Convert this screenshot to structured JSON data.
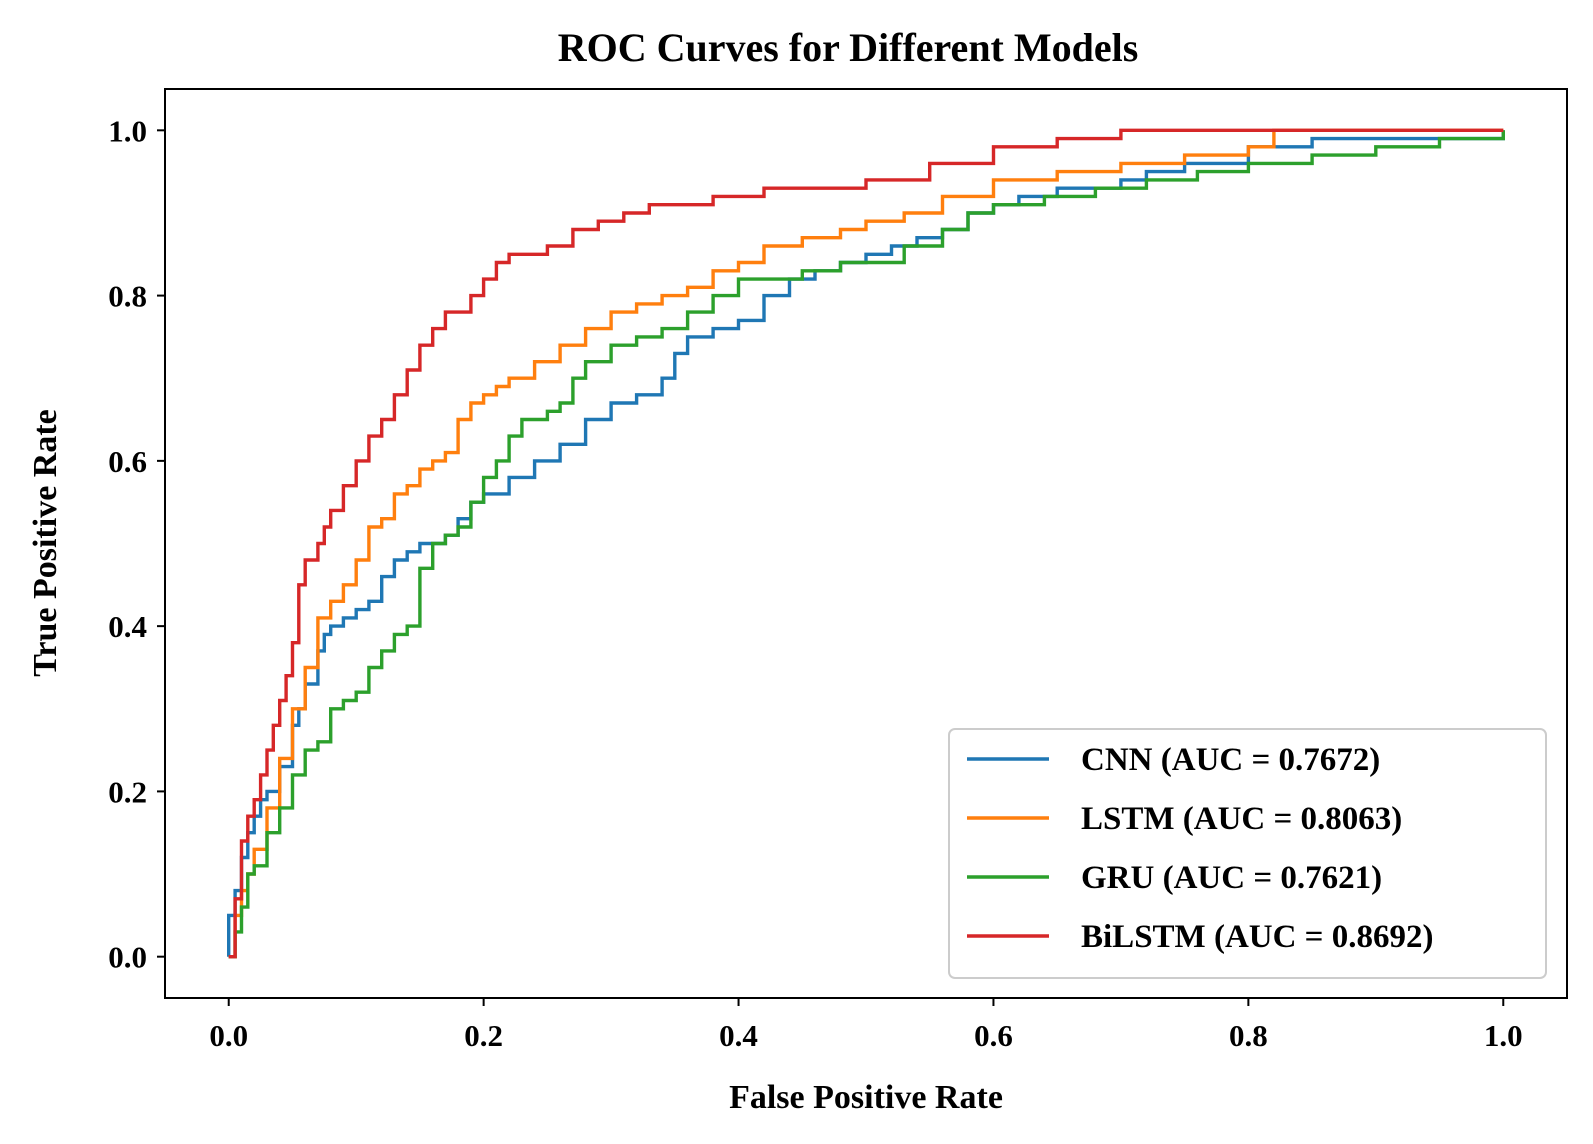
{
  "chart_data": {
    "type": "line",
    "title": "ROC Curves for Different Models",
    "xlabel": "False Positive Rate",
    "ylabel": "True Positive Rate",
    "xlim": [
      -0.05,
      1.05
    ],
    "ylim": [
      -0.05,
      1.05
    ],
    "xticks": [
      0.0,
      0.2,
      0.4,
      0.6,
      0.8,
      1.0
    ],
    "xtick_labels": [
      "0.0",
      "0.2",
      "0.4",
      "0.6",
      "0.8",
      "1.0"
    ],
    "yticks": [
      0.0,
      0.2,
      0.4,
      0.6,
      0.8,
      1.0
    ],
    "ytick_labels": [
      "0.0",
      "0.2",
      "0.4",
      "0.6",
      "0.8",
      "1.0"
    ],
    "grid": false,
    "legend_position": "lower-right",
    "series": [
      {
        "name": "CNN (AUC = 0.7672)",
        "color": "#1f77b4",
        "x": [
          0.0,
          0.0,
          0.005,
          0.01,
          0.015,
          0.02,
          0.025,
          0.03,
          0.04,
          0.05,
          0.055,
          0.06,
          0.07,
          0.075,
          0.08,
          0.09,
          0.1,
          0.11,
          0.12,
          0.13,
          0.14,
          0.15,
          0.16,
          0.17,
          0.18,
          0.19,
          0.2,
          0.22,
          0.24,
          0.26,
          0.28,
          0.3,
          0.32,
          0.34,
          0.35,
          0.36,
          0.38,
          0.4,
          0.42,
          0.44,
          0.46,
          0.48,
          0.5,
          0.52,
          0.54,
          0.56,
          0.58,
          0.6,
          0.62,
          0.65,
          0.68,
          0.7,
          0.72,
          0.75,
          0.8,
          0.85,
          0.9,
          1.0
        ],
        "y": [
          0.0,
          0.05,
          0.08,
          0.12,
          0.15,
          0.17,
          0.19,
          0.2,
          0.23,
          0.28,
          0.3,
          0.33,
          0.37,
          0.39,
          0.4,
          0.41,
          0.42,
          0.43,
          0.46,
          0.48,
          0.49,
          0.5,
          0.5,
          0.51,
          0.53,
          0.55,
          0.56,
          0.58,
          0.6,
          0.62,
          0.65,
          0.67,
          0.68,
          0.7,
          0.73,
          0.75,
          0.76,
          0.77,
          0.8,
          0.82,
          0.83,
          0.84,
          0.85,
          0.86,
          0.87,
          0.88,
          0.9,
          0.91,
          0.92,
          0.93,
          0.93,
          0.94,
          0.95,
          0.96,
          0.98,
          0.99,
          0.99,
          1.0
        ]
      },
      {
        "name": "LSTM (AUC = 0.8063)",
        "color": "#ff7f0e",
        "x": [
          0.0,
          0.005,
          0.01,
          0.015,
          0.02,
          0.03,
          0.04,
          0.05,
          0.06,
          0.07,
          0.08,
          0.09,
          0.1,
          0.11,
          0.12,
          0.13,
          0.14,
          0.15,
          0.16,
          0.17,
          0.18,
          0.19,
          0.2,
          0.21,
          0.22,
          0.24,
          0.26,
          0.28,
          0.3,
          0.32,
          0.34,
          0.36,
          0.38,
          0.4,
          0.42,
          0.45,
          0.48,
          0.5,
          0.53,
          0.56,
          0.6,
          0.65,
          0.7,
          0.75,
          0.8,
          0.82,
          1.0
        ],
        "y": [
          0.0,
          0.05,
          0.08,
          0.1,
          0.13,
          0.18,
          0.24,
          0.3,
          0.35,
          0.41,
          0.43,
          0.45,
          0.48,
          0.52,
          0.53,
          0.56,
          0.57,
          0.59,
          0.6,
          0.61,
          0.65,
          0.67,
          0.68,
          0.69,
          0.7,
          0.72,
          0.74,
          0.76,
          0.78,
          0.79,
          0.8,
          0.81,
          0.83,
          0.84,
          0.86,
          0.87,
          0.88,
          0.89,
          0.9,
          0.92,
          0.94,
          0.95,
          0.96,
          0.97,
          0.98,
          1.0,
          1.0
        ]
      },
      {
        "name": "GRU (AUC = 0.7621)",
        "color": "#2ca02c",
        "x": [
          0.0,
          0.005,
          0.01,
          0.015,
          0.02,
          0.03,
          0.04,
          0.05,
          0.06,
          0.07,
          0.08,
          0.09,
          0.1,
          0.11,
          0.12,
          0.13,
          0.14,
          0.15,
          0.16,
          0.17,
          0.18,
          0.19,
          0.2,
          0.21,
          0.22,
          0.23,
          0.25,
          0.26,
          0.27,
          0.28,
          0.3,
          0.32,
          0.34,
          0.36,
          0.38,
          0.4,
          0.42,
          0.45,
          0.48,
          0.5,
          0.53,
          0.56,
          0.58,
          0.6,
          0.64,
          0.68,
          0.72,
          0.76,
          0.8,
          0.85,
          0.9,
          0.95,
          1.0
        ],
        "y": [
          0.0,
          0.03,
          0.06,
          0.1,
          0.11,
          0.15,
          0.18,
          0.22,
          0.25,
          0.26,
          0.3,
          0.31,
          0.32,
          0.35,
          0.37,
          0.39,
          0.4,
          0.47,
          0.5,
          0.51,
          0.52,
          0.55,
          0.58,
          0.6,
          0.63,
          0.65,
          0.66,
          0.67,
          0.7,
          0.72,
          0.74,
          0.75,
          0.76,
          0.78,
          0.8,
          0.82,
          0.82,
          0.83,
          0.84,
          0.84,
          0.86,
          0.88,
          0.9,
          0.91,
          0.92,
          0.93,
          0.94,
          0.95,
          0.96,
          0.97,
          0.98,
          0.99,
          1.0
        ]
      },
      {
        "name": "BiLSTM (AUC = 0.8692)",
        "color": "#d62728",
        "x": [
          0.0,
          0.005,
          0.01,
          0.015,
          0.02,
          0.025,
          0.03,
          0.035,
          0.04,
          0.045,
          0.05,
          0.055,
          0.06,
          0.07,
          0.075,
          0.08,
          0.09,
          0.1,
          0.11,
          0.12,
          0.13,
          0.14,
          0.15,
          0.16,
          0.17,
          0.18,
          0.19,
          0.2,
          0.21,
          0.22,
          0.23,
          0.25,
          0.27,
          0.29,
          0.31,
          0.33,
          0.35,
          0.38,
          0.42,
          0.46,
          0.5,
          0.55,
          0.6,
          0.65,
          0.7,
          0.8,
          0.9,
          1.0
        ],
        "y": [
          0.0,
          0.07,
          0.14,
          0.17,
          0.19,
          0.22,
          0.25,
          0.28,
          0.31,
          0.34,
          0.38,
          0.45,
          0.48,
          0.5,
          0.52,
          0.54,
          0.57,
          0.6,
          0.63,
          0.65,
          0.68,
          0.71,
          0.74,
          0.76,
          0.78,
          0.78,
          0.8,
          0.82,
          0.84,
          0.85,
          0.85,
          0.86,
          0.88,
          0.89,
          0.9,
          0.91,
          0.91,
          0.92,
          0.93,
          0.93,
          0.94,
          0.96,
          0.98,
          0.99,
          1.0,
          1.0,
          1.0,
          1.0
        ]
      }
    ]
  }
}
